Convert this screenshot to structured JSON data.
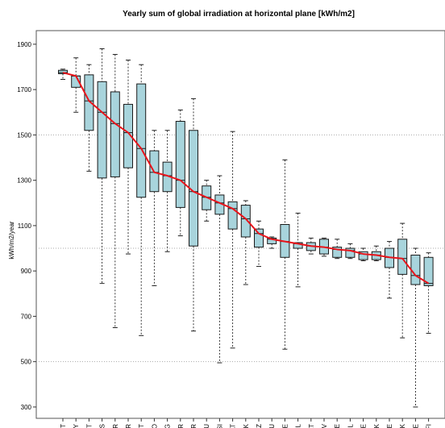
{
  "chart_data": {
    "type": "boxplot",
    "title": "Yearly sum of global irradiation at horizontal plane [kWh/m2]",
    "xlabel": "",
    "ylabel": "kWh/m2/year",
    "ylim": [
      250,
      1960
    ],
    "yticks": [
      300,
      500,
      700,
      900,
      1100,
      1300,
      1500,
      1700,
      1900
    ],
    "reference_lines": [
      1500,
      1000,
      500
    ],
    "grid": false,
    "colors": {
      "box_fill": "#a8d4dc",
      "box_edge": "#1a1a1a",
      "median_line": "#e8141b",
      "reference_line": "#aaaaaa"
    },
    "series": [
      {
        "name": "",
        "categories": [
          "MT",
          "CY",
          "PT",
          "ES",
          "TR",
          "GR",
          "IT",
          "RO",
          "BG",
          "HR",
          "FR",
          "HU",
          "SI",
          "AT",
          "SK",
          "CZ",
          "LU",
          "DE",
          "PL",
          "LT",
          "LV",
          "BE",
          "NL",
          "EE",
          "DK",
          "IE",
          "UK",
          "SE",
          "FI"
        ],
        "median": [
          1775,
          1760,
          1650,
          1600,
          1550,
          1510,
          1440,
          1335,
          1320,
          1300,
          1250,
          1225,
          1200,
          1175,
          1130,
          1065,
          1040,
          1030,
          1020,
          1010,
          1005,
          995,
          990,
          975,
          970,
          960,
          955,
          880,
          845
        ],
        "q1": [
          1770,
          1710,
          1520,
          1310,
          1315,
          1355,
          1225,
          1250,
          1250,
          1180,
          1010,
          1170,
          1150,
          1085,
          1050,
          1005,
          1020,
          960,
          1000,
          990,
          975,
          960,
          960,
          950,
          950,
          915,
          885,
          840,
          835
        ],
        "q3": [
          1785,
          1760,
          1765,
          1735,
          1690,
          1635,
          1725,
          1430,
          1380,
          1560,
          1520,
          1275,
          1235,
          1205,
          1190,
          1085,
          1045,
          1105,
          1025,
          1025,
          1040,
          1005,
          1000,
          985,
          985,
          1000,
          1040,
          970,
          960
        ],
        "min": [
          1745,
          1600,
          1340,
          845,
          650,
          975,
          615,
          835,
          985,
          1055,
          635,
          1120,
          495,
          560,
          840,
          920,
          1000,
          555,
          830,
          975,
          965,
          955,
          955,
          945,
          945,
          780,
          605,
          300,
          625
        ],
        "max": [
          1790,
          1840,
          1810,
          1880,
          1855,
          1830,
          1810,
          1520,
          1520,
          1610,
          1660,
          1300,
          1320,
          1515,
          1210,
          1120,
          1050,
          1390,
          1155,
          1045,
          1045,
          1040,
          1020,
          1000,
          1010,
          1030,
          1110,
          1000,
          980
        ]
      }
    ]
  }
}
